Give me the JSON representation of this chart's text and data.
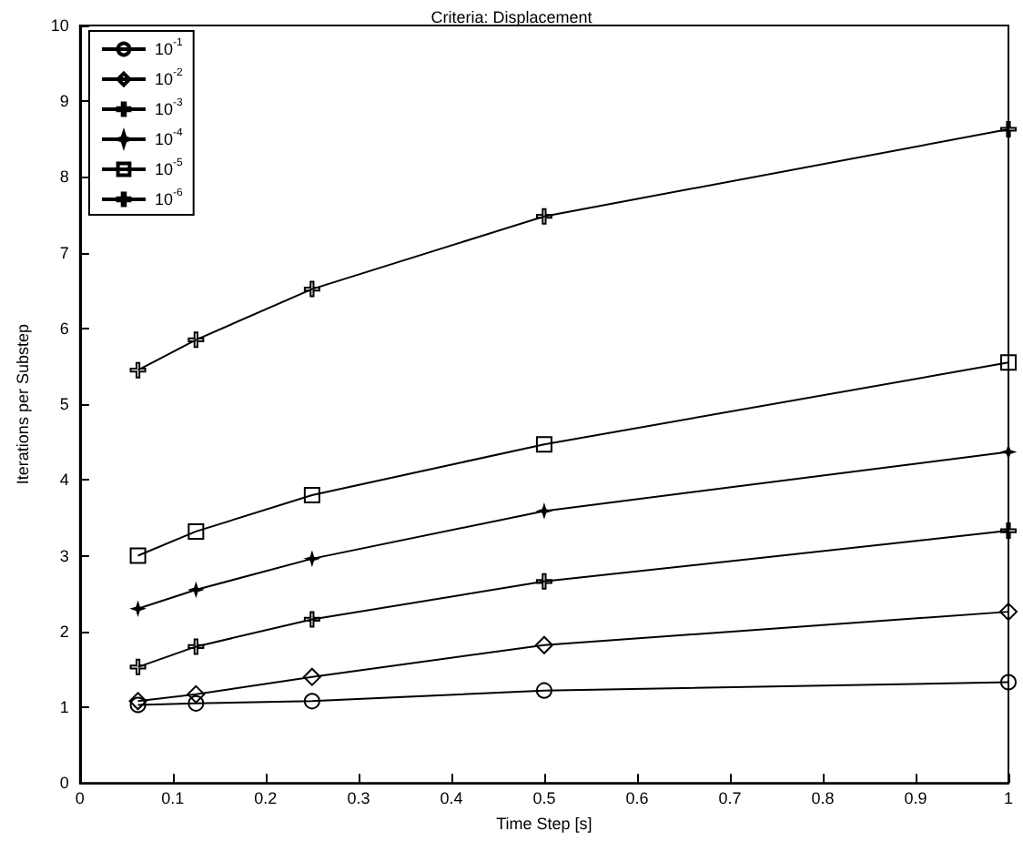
{
  "chart_data": {
    "type": "line",
    "title": "Criteria: Displacement",
    "xlabel": "Time Step [s]",
    "ylabel": "Iterations per Substep",
    "x": [
      0.0625,
      0.125,
      0.25,
      0.5,
      1
    ],
    "xlim": [
      0,
      1
    ],
    "xticks": [
      0,
      0.1,
      0.2,
      0.3,
      0.4,
      0.5,
      0.6,
      0.7,
      0.8,
      0.9,
      1
    ],
    "ylim": [
      0,
      10
    ],
    "yticks": [
      0,
      1,
      2,
      3,
      4,
      5,
      6,
      7,
      8,
      9,
      10
    ],
    "grid": false,
    "legend": "top left",
    "line_style": "solid",
    "series": [
      {
        "name": "10$^{-1}$",
        "color": "#000000",
        "marker": "circle",
        "values": [
          1.03,
          1.05,
          1.08,
          1.22,
          1.33
        ]
      },
      {
        "name": "10$^{-2}$",
        "color": "#000000",
        "marker": "diamond",
        "values": [
          1.08,
          1.17,
          1.4,
          1.82,
          2.26
        ]
      },
      {
        "name": "10$^{-3}$",
        "color": "#000000",
        "marker": "cross",
        "values": [
          1.53,
          1.8,
          2.16,
          2.66,
          3.33
        ]
      },
      {
        "name": "10$^{-4}$",
        "color": "#000000",
        "marker": "star",
        "values": [
          2.3,
          2.55,
          2.96,
          3.59,
          4.37
        ]
      },
      {
        "name": "10$^{-5}$",
        "color": "#000000",
        "marker": "square",
        "values": [
          3.0,
          3.32,
          3.8,
          4.47,
          5.55
        ]
      },
      {
        "name": "10$^{-6}$",
        "color": "#000000",
        "marker": "cross",
        "values": [
          5.45,
          5.85,
          6.52,
          7.48,
          8.63
        ]
      }
    ]
  }
}
